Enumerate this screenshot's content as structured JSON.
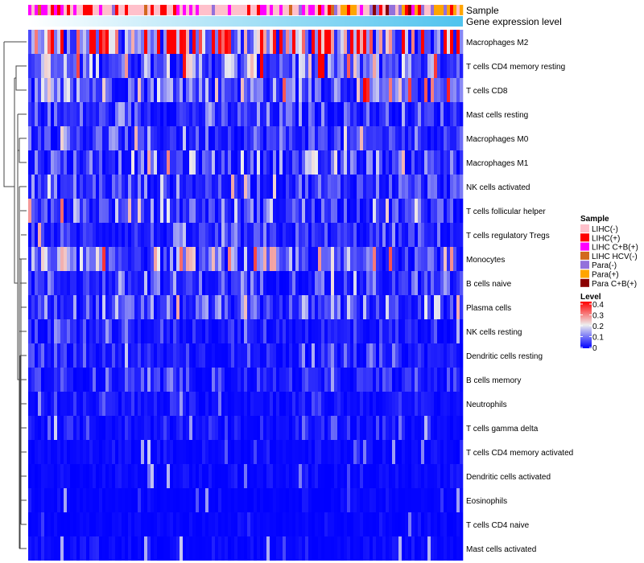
{
  "chart_data": {
    "type": "heatmap",
    "annotation_labels": [
      "Sample",
      "Gene expression level"
    ],
    "columns": 135,
    "rows": [
      {
        "label": "Macrophages M2",
        "mean": 0.29
      },
      {
        "label": "T cells CD4 memory resting",
        "mean": 0.12
      },
      {
        "label": "T cells CD8",
        "mean": 0.12
      },
      {
        "label": "Mast cells resting",
        "mean": 0.05
      },
      {
        "label": "Macrophages M0",
        "mean": 0.06
      },
      {
        "label": "Macrophages M1",
        "mean": 0.07
      },
      {
        "label": "NK cells activated",
        "mean": 0.06
      },
      {
        "label": "T cells follicular helper",
        "mean": 0.07
      },
      {
        "label": "T cells regulatory  Tregs",
        "mean": 0.04
      },
      {
        "label": "Monocytes",
        "mean": 0.09
      },
      {
        "label": "B cells naive",
        "mean": 0.05
      },
      {
        "label": "Plasma cells",
        "mean": 0.06
      },
      {
        "label": "NK cells resting",
        "mean": 0.03
      },
      {
        "label": "Dendritic cells resting",
        "mean": 0.03
      },
      {
        "label": "B cells memory",
        "mean": 0.03
      },
      {
        "label": "Neutrophils",
        "mean": 0.02
      },
      {
        "label": "T cells gamma delta",
        "mean": 0.02
      },
      {
        "label": "T cells CD4 memory activated",
        "mean": 0.01
      },
      {
        "label": "Dendritic cells activated",
        "mean": 0.01
      },
      {
        "label": "Eosinophils",
        "mean": 0.006
      },
      {
        "label": "T cells CD4 naive",
        "mean": 0.006
      },
      {
        "label": "Mast cells activated",
        "mean": 0.01
      }
    ],
    "legend_sample": {
      "title": "Sample",
      "items": [
        {
          "label": "LIHC(-)",
          "color": "#FFC0CB"
        },
        {
          "label": "LIHC(+)",
          "color": "#FF0000"
        },
        {
          "label": "LIHC C+B(+)",
          "color": "#FF00FF"
        },
        {
          "label": "LIHC HCV(-)",
          "color": "#D2691E"
        },
        {
          "label": "Para(-)",
          "color": "#9370DB"
        },
        {
          "label": "Para(+)",
          "color": "#FFA500"
        },
        {
          "label": "Para C+B(+)",
          "color": "#8B0000"
        }
      ]
    },
    "legend_level": {
      "title": "Level",
      "ticks": [
        "0.4",
        "0.3",
        "0.2",
        "0.1",
        "0"
      ],
      "range": [
        0,
        0.4
      ],
      "colors": {
        "low": "#0000FF",
        "mid": "#EEEEEE",
        "high": "#FF0000"
      }
    },
    "gene_expression_colors": {
      "low": "#FFFFFF",
      "high": "#4FC3EE"
    }
  }
}
